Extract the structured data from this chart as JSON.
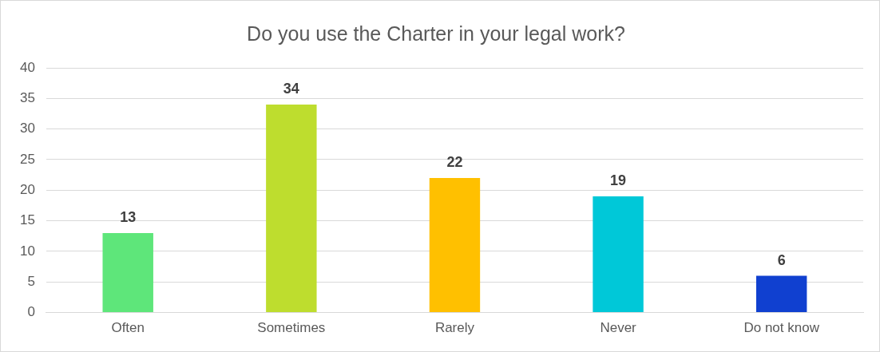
{
  "chart_data": {
    "type": "bar",
    "title": "Do you use the Charter in your legal work?",
    "categories": [
      "Often",
      "Sometimes",
      "Rarely",
      "Never",
      "Do not know"
    ],
    "values": [
      13,
      34,
      22,
      19,
      6
    ],
    "colors": [
      "#5ee67a",
      "#bedd2e",
      "#ffc000",
      "#00c8d8",
      "#1040d0"
    ],
    "ylim": [
      0,
      40
    ],
    "yticks": [
      0,
      5,
      10,
      15,
      20,
      25,
      30,
      35,
      40
    ],
    "grid": "y",
    "legend": false,
    "data_labels": true
  }
}
